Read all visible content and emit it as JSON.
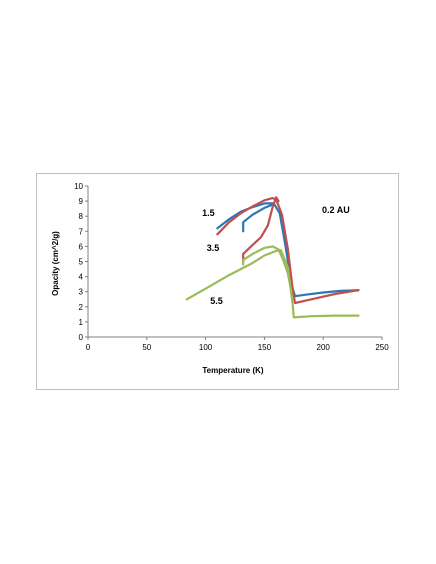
{
  "chart_data": {
    "type": "line",
    "title": "",
    "xlabel": "Temperature (K)",
    "ylabel": "Opacity (cm^2/g)",
    "xlim": [
      0,
      250
    ],
    "ylim": [
      0,
      10
    ],
    "x_ticks": [
      "0",
      "50",
      "100",
      "150",
      "200",
      "250"
    ],
    "y_ticks": [
      "0",
      "1",
      "2",
      "3",
      "4",
      "5",
      "6",
      "7",
      "8",
      "9",
      "10"
    ],
    "grid": false,
    "legend": "none",
    "series": [
      {
        "color": "#2e75b6",
        "points": [
          [
            110,
            7.2
          ],
          [
            120,
            7.8
          ],
          [
            130,
            8.3
          ],
          [
            140,
            8.6
          ],
          [
            150,
            8.85
          ],
          [
            158,
            8.85
          ],
          [
            163,
            8.2
          ],
          [
            168,
            6.0
          ],
          [
            173,
            3.5
          ],
          [
            176,
            2.7
          ],
          [
            185,
            2.8
          ],
          [
            200,
            2.95
          ],
          [
            215,
            3.05
          ],
          [
            230,
            3.1
          ]
        ]
      },
      {
        "color": "#2e75b6",
        "points": [
          [
            132,
            7.0
          ],
          [
            132,
            7.6
          ],
          [
            140,
            8.1
          ],
          [
            150,
            8.55
          ],
          [
            158,
            8.8
          ]
        ]
      },
      {
        "color": "#c0504d",
        "points": [
          [
            110,
            6.8
          ],
          [
            120,
            7.6
          ],
          [
            130,
            8.2
          ],
          [
            140,
            8.65
          ],
          [
            150,
            9.05
          ],
          [
            157,
            9.2
          ],
          [
            160,
            9.1
          ],
          [
            165,
            8.1
          ],
          [
            170,
            5.8
          ],
          [
            174,
            3.2
          ],
          [
            176,
            2.25
          ],
          [
            190,
            2.5
          ],
          [
            210,
            2.85
          ],
          [
            230,
            3.1
          ]
        ]
      },
      {
        "color": "#c0504d",
        "points": [
          [
            132,
            5.0
          ],
          [
            132,
            5.5
          ],
          [
            140,
            6.1
          ],
          [
            147,
            6.6
          ],
          [
            153,
            7.4
          ],
          [
            157,
            8.6
          ],
          [
            160,
            9.25
          ],
          [
            162,
            9.0
          ]
        ]
      },
      {
        "color": "#9bbb59",
        "points": [
          [
            84,
            2.5
          ],
          [
            100,
            3.2
          ],
          [
            120,
            4.1
          ],
          [
            140,
            4.9
          ],
          [
            150,
            5.4
          ],
          [
            160,
            5.7
          ],
          [
            164,
            5.75
          ],
          [
            170,
            4.6
          ],
          [
            174,
            2.2
          ],
          [
            175,
            1.3
          ],
          [
            190,
            1.38
          ],
          [
            210,
            1.42
          ],
          [
            230,
            1.42
          ]
        ]
      },
      {
        "color": "#9bbb59",
        "points": [
          [
            132,
            4.8
          ],
          [
            132,
            5.1
          ],
          [
            140,
            5.5
          ],
          [
            150,
            5.9
          ],
          [
            157,
            6.0
          ],
          [
            162,
            5.8
          ],
          [
            166,
            5.1
          ],
          [
            170,
            4.2
          ],
          [
            173,
            3.0
          ]
        ]
      }
    ],
    "annotations": [
      {
        "text": "1.5",
        "x": 97,
        "y": 8.0
      },
      {
        "text": "3.5",
        "x": 101,
        "y": 5.7
      },
      {
        "text": "5.5",
        "x": 104,
        "y": 2.2
      },
      {
        "text": "0.2 AU",
        "x": 199,
        "y": 8.2
      }
    ]
  }
}
